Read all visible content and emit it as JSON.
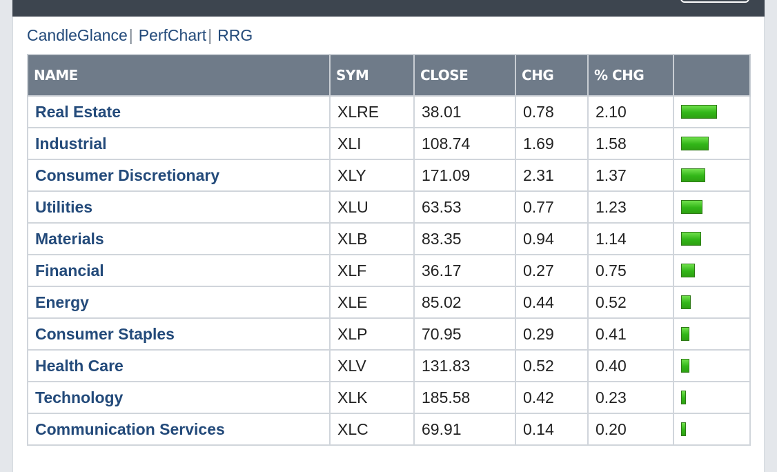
{
  "links": [
    "CandleGlance",
    "PerfChart",
    "RRG"
  ],
  "link_separator": "|",
  "table": {
    "headers": [
      "NAME",
      "SYM",
      "CLOSE",
      "CHG",
      "% CHG",
      ""
    ],
    "rows": [
      {
        "name": "Real Estate",
        "sym": "XLRE",
        "close": "38.01",
        "chg": "0.78",
        "pct": "2.10",
        "pct_value": 2.1
      },
      {
        "name": "Industrial",
        "sym": "XLI",
        "close": "108.74",
        "chg": "1.69",
        "pct": "1.58",
        "pct_value": 1.58
      },
      {
        "name": "Consumer Discretionary",
        "sym": "XLY",
        "close": "171.09",
        "chg": "2.31",
        "pct": "1.37",
        "pct_value": 1.37
      },
      {
        "name": "Utilities",
        "sym": "XLU",
        "close": "63.53",
        "chg": "0.77",
        "pct": "1.23",
        "pct_value": 1.23
      },
      {
        "name": "Materials",
        "sym": "XLB",
        "close": "83.35",
        "chg": "0.94",
        "pct": "1.14",
        "pct_value": 1.14
      },
      {
        "name": "Financial",
        "sym": "XLF",
        "close": "36.17",
        "chg": "0.27",
        "pct": "0.75",
        "pct_value": 0.75
      },
      {
        "name": "Energy",
        "sym": "XLE",
        "close": "85.02",
        "chg": "0.44",
        "pct": "0.52",
        "pct_value": 0.52
      },
      {
        "name": "Consumer Staples",
        "sym": "XLP",
        "close": "70.95",
        "chg": "0.29",
        "pct": "0.41",
        "pct_value": 0.41
      },
      {
        "name": "Health Care",
        "sym": "XLV",
        "close": "131.83",
        "chg": "0.52",
        "pct": "0.40",
        "pct_value": 0.4
      },
      {
        "name": "Technology",
        "sym": "XLK",
        "close": "185.58",
        "chg": "0.42",
        "pct": "0.23",
        "pct_value": 0.23
      },
      {
        "name": "Communication Services",
        "sym": "XLC",
        "close": "69.91",
        "chg": "0.14",
        "pct": "0.20",
        "pct_value": 0.2
      }
    ]
  },
  "colors": {
    "header_bg": "#6f7b89",
    "link": "#234a7a",
    "bar_green": "#32b618",
    "topbar": "#3d454f"
  }
}
